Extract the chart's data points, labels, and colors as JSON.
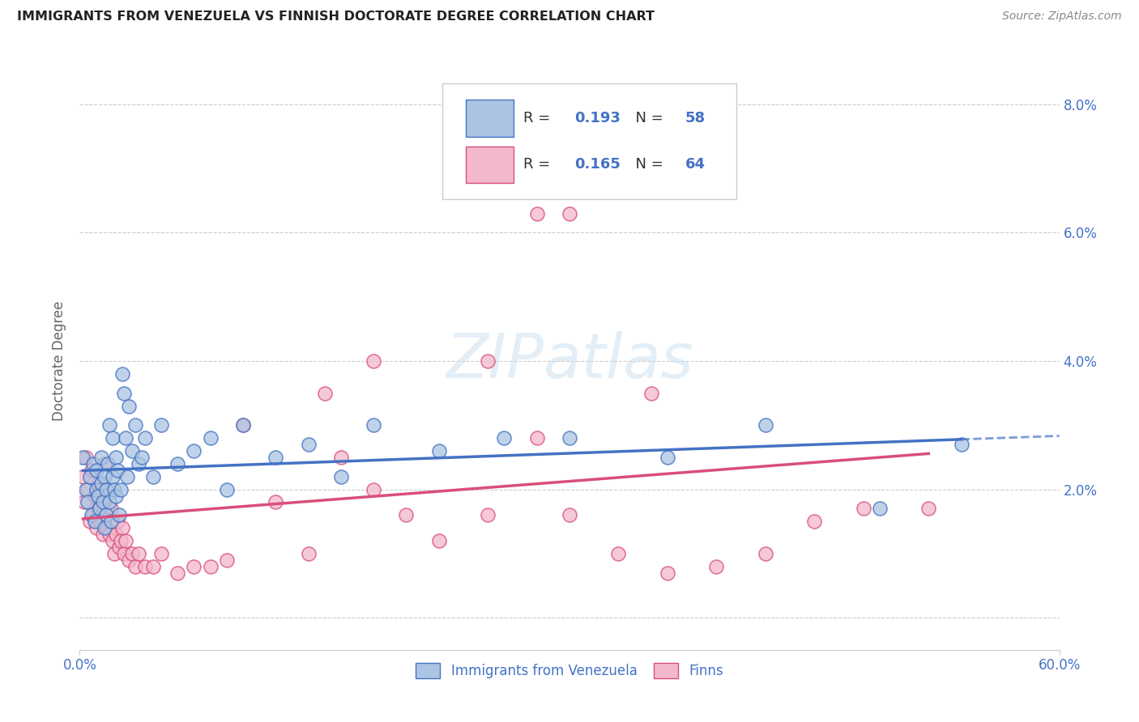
{
  "title": "IMMIGRANTS FROM VENEZUELA VS FINNISH DOCTORATE DEGREE CORRELATION CHART",
  "source": "Source: ZipAtlas.com",
  "ylabel": "Doctorate Degree",
  "xlim": [
    0.0,
    0.6
  ],
  "ylim": [
    -0.005,
    0.085
  ],
  "xtick_positions": [
    0.0,
    0.6
  ],
  "xtick_labels": [
    "0.0%",
    "60.0%"
  ],
  "ytick_positions": [
    0.0,
    0.02,
    0.04,
    0.06,
    0.08
  ],
  "ytick_labels_right": [
    "",
    "2.0%",
    "4.0%",
    "6.0%",
    "8.0%"
  ],
  "blue_color": "#aac4e2",
  "blue_edge_color": "#4472c4",
  "blue_line_color": "#4472c4",
  "pink_color": "#f4b8cc",
  "pink_edge_color": "#d94f78",
  "pink_line_color": "#d94f78",
  "R_blue": 0.193,
  "N_blue": 58,
  "R_pink": 0.165,
  "N_pink": 64,
  "legend_blue_label": "Immigrants from Venezuela",
  "legend_pink_label": "Finns",
  "watermark": "ZIPatlas",
  "grid_color": "#cccccc",
  "blue_scatter_x": [
    0.002,
    0.004,
    0.005,
    0.006,
    0.007,
    0.008,
    0.009,
    0.01,
    0.01,
    0.011,
    0.012,
    0.013,
    0.013,
    0.014,
    0.015,
    0.015,
    0.016,
    0.016,
    0.017,
    0.018,
    0.018,
    0.019,
    0.02,
    0.02,
    0.021,
    0.022,
    0.022,
    0.023,
    0.024,
    0.025,
    0.026,
    0.027,
    0.028,
    0.029,
    0.03,
    0.032,
    0.034,
    0.036,
    0.038,
    0.04,
    0.045,
    0.05,
    0.06,
    0.07,
    0.08,
    0.09,
    0.1,
    0.12,
    0.14,
    0.16,
    0.18,
    0.22,
    0.26,
    0.3,
    0.36,
    0.42,
    0.49,
    0.54
  ],
  "blue_scatter_y": [
    0.025,
    0.02,
    0.018,
    0.022,
    0.016,
    0.024,
    0.015,
    0.02,
    0.023,
    0.019,
    0.017,
    0.021,
    0.025,
    0.018,
    0.022,
    0.014,
    0.02,
    0.016,
    0.024,
    0.018,
    0.03,
    0.015,
    0.022,
    0.028,
    0.02,
    0.025,
    0.019,
    0.023,
    0.016,
    0.02,
    0.038,
    0.035,
    0.028,
    0.022,
    0.033,
    0.026,
    0.03,
    0.024,
    0.025,
    0.028,
    0.022,
    0.03,
    0.024,
    0.026,
    0.028,
    0.02,
    0.03,
    0.025,
    0.027,
    0.022,
    0.03,
    0.026,
    0.028,
    0.028,
    0.025,
    0.03,
    0.017,
    0.027
  ],
  "pink_scatter_x": [
    0.002,
    0.003,
    0.004,
    0.005,
    0.006,
    0.007,
    0.008,
    0.009,
    0.01,
    0.011,
    0.011,
    0.012,
    0.013,
    0.014,
    0.015,
    0.015,
    0.016,
    0.017,
    0.018,
    0.019,
    0.02,
    0.02,
    0.021,
    0.022,
    0.023,
    0.024,
    0.025,
    0.026,
    0.027,
    0.028,
    0.03,
    0.032,
    0.034,
    0.036,
    0.04,
    0.045,
    0.05,
    0.06,
    0.07,
    0.08,
    0.09,
    0.1,
    0.12,
    0.14,
    0.16,
    0.18,
    0.2,
    0.22,
    0.25,
    0.28,
    0.3,
    0.33,
    0.36,
    0.39,
    0.42,
    0.45,
    0.48,
    0.52,
    0.3,
    0.28,
    0.15,
    0.25,
    0.18,
    0.35
  ],
  "pink_scatter_y": [
    0.022,
    0.018,
    0.025,
    0.02,
    0.015,
    0.023,
    0.016,
    0.019,
    0.014,
    0.021,
    0.017,
    0.015,
    0.02,
    0.013,
    0.018,
    0.024,
    0.016,
    0.014,
    0.013,
    0.017,
    0.012,
    0.015,
    0.01,
    0.013,
    0.015,
    0.011,
    0.012,
    0.014,
    0.01,
    0.012,
    0.009,
    0.01,
    0.008,
    0.01,
    0.008,
    0.008,
    0.01,
    0.007,
    0.008,
    0.008,
    0.009,
    0.03,
    0.018,
    0.01,
    0.025,
    0.04,
    0.016,
    0.012,
    0.016,
    0.028,
    0.016,
    0.01,
    0.007,
    0.008,
    0.01,
    0.015,
    0.017,
    0.017,
    0.063,
    0.063,
    0.035,
    0.04,
    0.02,
    0.035
  ]
}
